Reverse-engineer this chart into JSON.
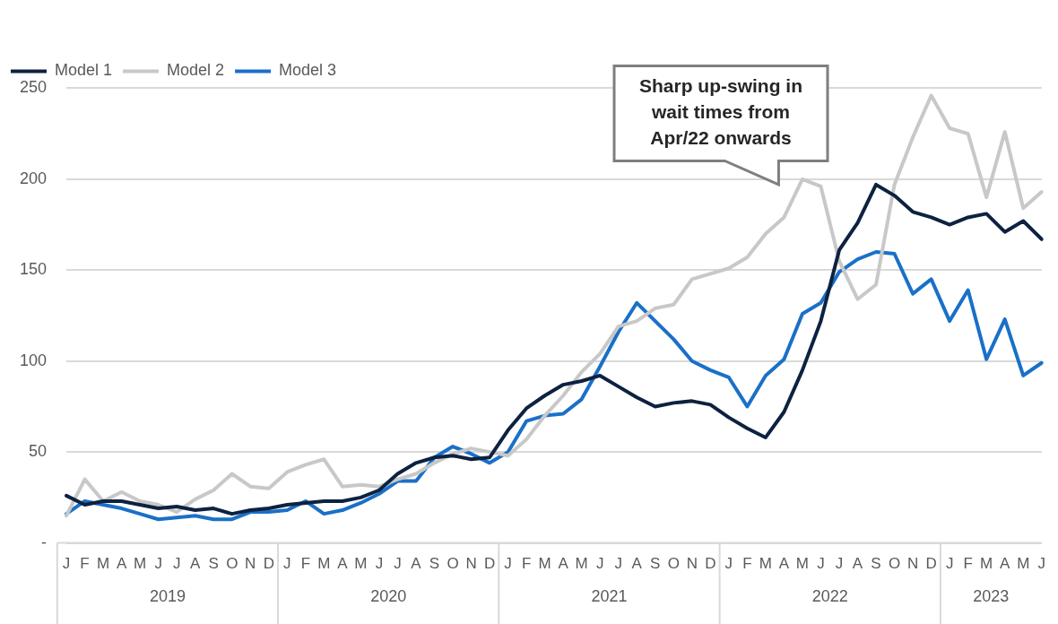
{
  "chart_data": {
    "type": "line",
    "categories": [
      "J",
      "F",
      "M",
      "A",
      "M",
      "J",
      "J",
      "A",
      "S",
      "O",
      "N",
      "D",
      "J",
      "F",
      "M",
      "A",
      "M",
      "J",
      "J",
      "A",
      "S",
      "O",
      "N",
      "D",
      "J",
      "F",
      "M",
      "A",
      "M",
      "J",
      "J",
      "A",
      "S",
      "O",
      "N",
      "D",
      "J",
      "F",
      "M",
      "A",
      "M",
      "J",
      "J",
      "A",
      "S",
      "O",
      "N",
      "D",
      "J",
      "F",
      "M",
      "A",
      "M",
      "J"
    ],
    "series": [
      {
        "name": "Model 1",
        "color": "#0d2240",
        "values": [
          26,
          21,
          23,
          23,
          21,
          19,
          20,
          18,
          19,
          16,
          18,
          19,
          21,
          22,
          23,
          23,
          25,
          29,
          38,
          44,
          47,
          48,
          46,
          47,
          62,
          74,
          81,
          87,
          89,
          92,
          86,
          80,
          75,
          77,
          78,
          76,
          69,
          63,
          58,
          72,
          95,
          122,
          161,
          176,
          197,
          191,
          182,
          179,
          175,
          179,
          181,
          171,
          177,
          167
        ]
      },
      {
        "name": "Model 2",
        "color": "#c8c8c8",
        "values": [
          15,
          35,
          23,
          28,
          23,
          21,
          17,
          24,
          29,
          38,
          31,
          30,
          39,
          43,
          46,
          31,
          32,
          31,
          35,
          38,
          44,
          49,
          52,
          50,
          48,
          57,
          70,
          81,
          94,
          104,
          119,
          122,
          129,
          131,
          145,
          148,
          151,
          157,
          170,
          179,
          200,
          196,
          155,
          134,
          142,
          197,
          223,
          246,
          228,
          225,
          190,
          226,
          184,
          193
        ]
      },
      {
        "name": "Model 3",
        "color": "#1a70c8",
        "values": [
          16,
          23,
          21,
          19,
          16,
          13,
          14,
          15,
          13,
          13,
          17,
          17,
          18,
          23,
          16,
          18,
          22,
          27,
          34,
          34,
          47,
          53,
          49,
          44,
          50,
          67,
          70,
          71,
          79,
          97,
          116,
          132,
          122,
          112,
          100,
          95,
          91,
          75,
          92,
          101,
          126,
          132,
          149,
          156,
          160,
          159,
          137,
          145,
          122,
          139,
          101,
          123,
          92,
          99
        ]
      }
    ],
    "ylim": [
      0,
      250
    ],
    "yticks": [
      {
        "value": 0,
        "label": "-"
      },
      50,
      100,
      150,
      200,
      250
    ],
    "grid": "y",
    "legend": "top left",
    "marker": "none",
    "line_style": "solid",
    "annotations": [
      "Sharp up-swing in wait times from Apr/22 onwards",
      "2019",
      "2020",
      "2021",
      "2022",
      "2023"
    ]
  }
}
